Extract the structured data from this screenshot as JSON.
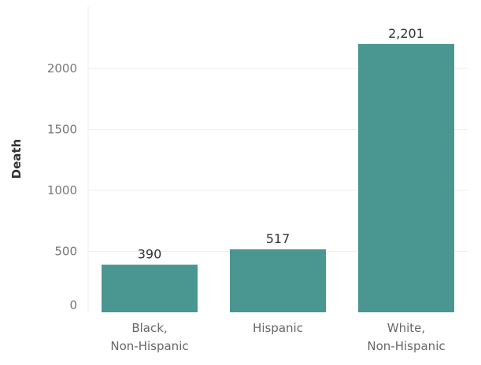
{
  "chart_data": {
    "type": "bar",
    "title": "",
    "xlabel": "",
    "ylabel": "Death",
    "categories": [
      [
        "Black,",
        "Non-Hispanic"
      ],
      [
        "Hispanic"
      ],
      [
        "White,",
        "Non-Hispanic"
      ]
    ],
    "values": [
      390,
      517,
      2201
    ],
    "value_labels": [
      "390",
      "517",
      "2,201"
    ],
    "yticks": [
      0,
      500,
      1000,
      1500,
      2000
    ],
    "ytick_labels": [
      "0",
      "500",
      "1000",
      "1500",
      "2000"
    ],
    "ylim": [
      0,
      2400
    ],
    "grid": true,
    "bar_color": "#4a9690",
    "grid_color": "#eeeeee"
  }
}
